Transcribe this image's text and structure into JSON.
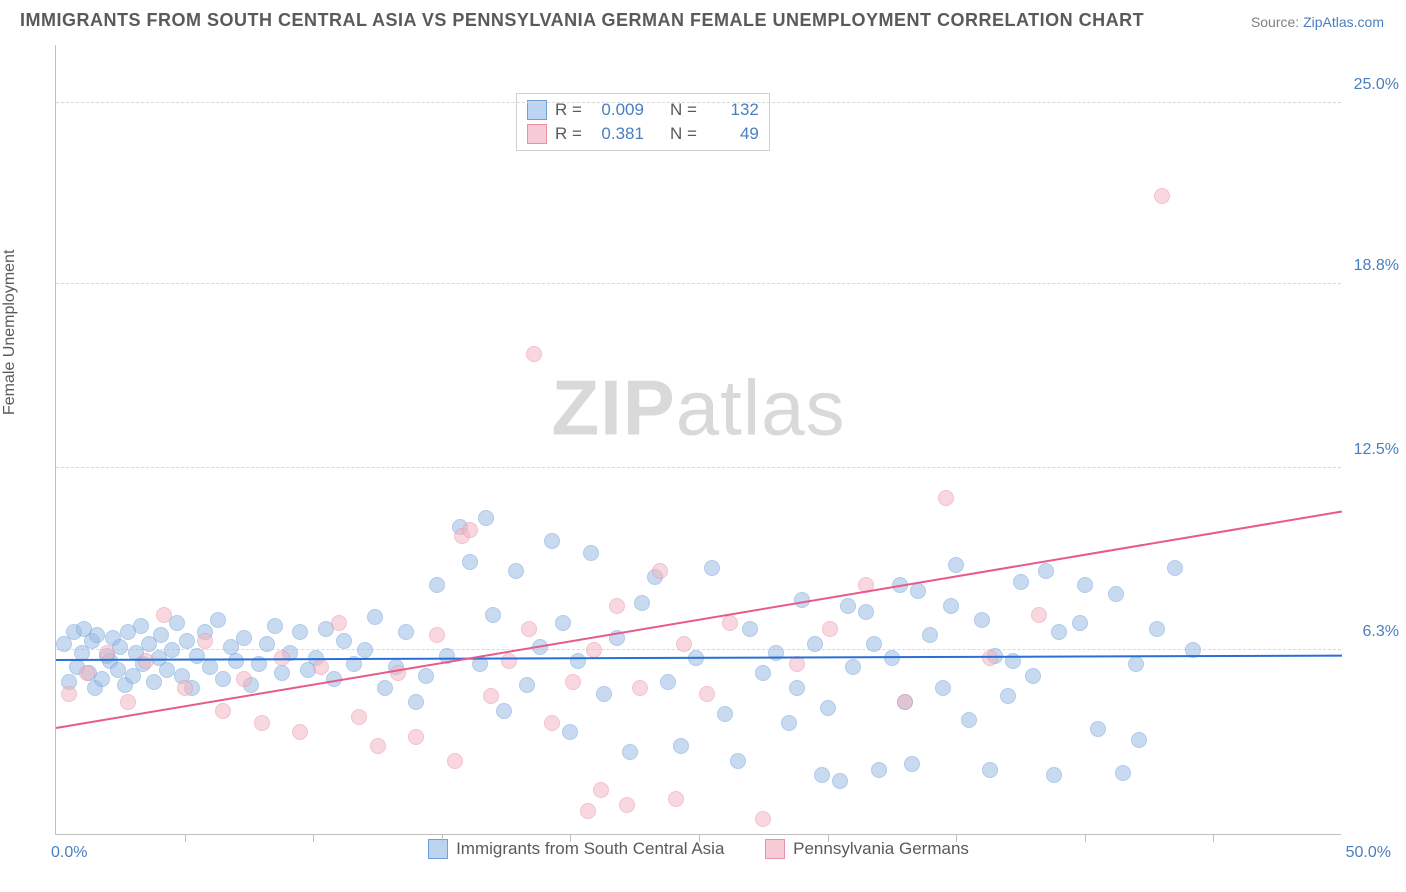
{
  "title": "IMMIGRANTS FROM SOUTH CENTRAL ASIA VS PENNSYLVANIA GERMAN FEMALE UNEMPLOYMENT CORRELATION CHART",
  "source_label": "Source:",
  "source_name": "ZipAtlas.com",
  "ylabel": "Female Unemployment",
  "watermark_bold": "ZIP",
  "watermark_light": "atlas",
  "chart": {
    "type": "scatter",
    "xlim": [
      0,
      50
    ],
    "ylim": [
      0,
      27
    ],
    "x_end_labels": [
      "0.0%",
      "50.0%"
    ],
    "yticks": [
      {
        "v": 6.3,
        "label": "6.3%"
      },
      {
        "v": 12.5,
        "label": "12.5%"
      },
      {
        "v": 18.8,
        "label": "18.8%"
      },
      {
        "v": 25.0,
        "label": "25.0%"
      }
    ],
    "xticks_minor": [
      5,
      10,
      15,
      20,
      25,
      30,
      35,
      40,
      45
    ],
    "background_color": "#ffffff",
    "grid_color": "#d8d8d8",
    "marker_radius": 8,
    "marker_opacity": 0.55,
    "series": [
      {
        "name": "Immigrants from South Central Asia",
        "fill": "#9bbce4",
        "stroke": "#6fa0d8",
        "trend_color": "#2a6fd6",
        "R": "0.009",
        "N": "132",
        "trend": {
          "x1": 0,
          "y1": 5.9,
          "x2": 50,
          "y2": 6.05
        },
        "points": [
          [
            0.3,
            6.5
          ],
          [
            0.5,
            5.2
          ],
          [
            0.7,
            6.9
          ],
          [
            0.8,
            5.7
          ],
          [
            1.0,
            6.2
          ],
          [
            1.1,
            7.0
          ],
          [
            1.3,
            5.5
          ],
          [
            1.4,
            6.6
          ],
          [
            1.5,
            5.0
          ],
          [
            1.6,
            6.8
          ],
          [
            1.8,
            5.3
          ],
          [
            2.0,
            6.1
          ],
          [
            2.1,
            5.9
          ],
          [
            2.2,
            6.7
          ],
          [
            2.4,
            5.6
          ],
          [
            2.5,
            6.4
          ],
          [
            2.7,
            5.1
          ],
          [
            2.8,
            6.9
          ],
          [
            3.0,
            5.4
          ],
          [
            3.1,
            6.2
          ],
          [
            3.3,
            7.1
          ],
          [
            3.4,
            5.8
          ],
          [
            3.6,
            6.5
          ],
          [
            3.8,
            5.2
          ],
          [
            4.0,
            6.0
          ],
          [
            4.1,
            6.8
          ],
          [
            4.3,
            5.6
          ],
          [
            4.5,
            6.3
          ],
          [
            4.7,
            7.2
          ],
          [
            4.9,
            5.4
          ],
          [
            5.1,
            6.6
          ],
          [
            5.3,
            5.0
          ],
          [
            5.5,
            6.1
          ],
          [
            5.8,
            6.9
          ],
          [
            6.0,
            5.7
          ],
          [
            6.3,
            7.3
          ],
          [
            6.5,
            5.3
          ],
          [
            6.8,
            6.4
          ],
          [
            7.0,
            5.9
          ],
          [
            7.3,
            6.7
          ],
          [
            7.6,
            5.1
          ],
          [
            7.9,
            5.8
          ],
          [
            8.2,
            6.5
          ],
          [
            8.5,
            7.1
          ],
          [
            8.8,
            5.5
          ],
          [
            9.1,
            6.2
          ],
          [
            9.5,
            6.9
          ],
          [
            9.8,
            5.6
          ],
          [
            10.1,
            6.0
          ],
          [
            10.5,
            7.0
          ],
          [
            10.8,
            5.3
          ],
          [
            11.2,
            6.6
          ],
          [
            11.6,
            5.8
          ],
          [
            12.0,
            6.3
          ],
          [
            12.4,
            7.4
          ],
          [
            12.8,
            5.0
          ],
          [
            13.2,
            5.7
          ],
          [
            13.6,
            6.9
          ],
          [
            14.0,
            4.5
          ],
          [
            14.4,
            5.4
          ],
          [
            14.8,
            8.5
          ],
          [
            15.2,
            6.1
          ],
          [
            15.7,
            10.5
          ],
          [
            16.1,
            9.3
          ],
          [
            16.5,
            5.8
          ],
          [
            16.7,
            10.8
          ],
          [
            17.0,
            7.5
          ],
          [
            17.4,
            4.2
          ],
          [
            17.9,
            9.0
          ],
          [
            18.3,
            5.1
          ],
          [
            18.8,
            6.4
          ],
          [
            19.3,
            10.0
          ],
          [
            19.7,
            7.2
          ],
          [
            20.0,
            3.5
          ],
          [
            20.3,
            5.9
          ],
          [
            20.8,
            9.6
          ],
          [
            21.3,
            4.8
          ],
          [
            21.8,
            6.7
          ],
          [
            22.3,
            2.8
          ],
          [
            22.8,
            7.9
          ],
          [
            23.3,
            8.8
          ],
          [
            23.8,
            5.2
          ],
          [
            24.3,
            3.0
          ],
          [
            24.9,
            6.0
          ],
          [
            25.5,
            9.1
          ],
          [
            26.0,
            4.1
          ],
          [
            26.5,
            2.5
          ],
          [
            27.0,
            7.0
          ],
          [
            27.5,
            5.5
          ],
          [
            28.0,
            6.2
          ],
          [
            28.5,
            3.8
          ],
          [
            29.0,
            8.0
          ],
          [
            29.5,
            6.5
          ],
          [
            30.0,
            4.3
          ],
          [
            30.5,
            1.8
          ],
          [
            31.0,
            5.7
          ],
          [
            31.5,
            7.6
          ],
          [
            32.0,
            2.2
          ],
          [
            32.5,
            6.0
          ],
          [
            33.0,
            4.5
          ],
          [
            33.5,
            8.3
          ],
          [
            34.0,
            6.8
          ],
          [
            34.5,
            5.0
          ],
          [
            35.0,
            9.2
          ],
          [
            35.5,
            3.9
          ],
          [
            36.0,
            7.3
          ],
          [
            36.5,
            6.1
          ],
          [
            37.0,
            4.7
          ],
          [
            37.5,
            8.6
          ],
          [
            38.0,
            5.4
          ],
          [
            38.5,
            9.0
          ],
          [
            39.0,
            6.9
          ],
          [
            39.8,
            7.2
          ],
          [
            40.5,
            3.6
          ],
          [
            41.2,
            8.2
          ],
          [
            42.0,
            5.8
          ],
          [
            42.1,
            3.2
          ],
          [
            42.8,
            7.0
          ],
          [
            43.5,
            9.1
          ],
          [
            44.2,
            6.3
          ],
          [
            41.5,
            2.1
          ],
          [
            40.0,
            8.5
          ],
          [
            38.8,
            2.0
          ],
          [
            37.2,
            5.9
          ],
          [
            36.3,
            2.2
          ],
          [
            34.8,
            7.8
          ],
          [
            33.3,
            2.4
          ],
          [
            32.8,
            8.5
          ],
          [
            31.8,
            6.5
          ],
          [
            30.8,
            7.8
          ],
          [
            29.8,
            2.0
          ],
          [
            28.8,
            5.0
          ]
        ]
      },
      {
        "name": "Pennsylvania Germans",
        "fill": "#f3b7c4",
        "stroke": "#e991a7",
        "trend_color": "#e75a8a",
        "R": "0.381",
        "N": "49",
        "trend": {
          "x1": 0,
          "y1": 3.6,
          "x2": 50,
          "y2": 11.0
        },
        "points": [
          [
            0.5,
            4.8
          ],
          [
            1.2,
            5.5
          ],
          [
            2.0,
            6.2
          ],
          [
            2.8,
            4.5
          ],
          [
            3.5,
            5.9
          ],
          [
            4.2,
            7.5
          ],
          [
            5.0,
            5.0
          ],
          [
            5.8,
            6.6
          ],
          [
            6.5,
            4.2
          ],
          [
            7.3,
            5.3
          ],
          [
            8.0,
            3.8
          ],
          [
            8.8,
            6.0
          ],
          [
            9.5,
            3.5
          ],
          [
            10.3,
            5.7
          ],
          [
            11.0,
            7.2
          ],
          [
            11.8,
            4.0
          ],
          [
            12.5,
            3.0
          ],
          [
            13.3,
            5.5
          ],
          [
            14.0,
            3.3
          ],
          [
            14.8,
            6.8
          ],
          [
            15.5,
            2.5
          ],
          [
            15.8,
            10.2
          ],
          [
            16.1,
            10.4
          ],
          [
            16.9,
            4.7
          ],
          [
            17.6,
            5.9
          ],
          [
            18.4,
            7.0
          ],
          [
            18.6,
            16.4
          ],
          [
            19.3,
            3.8
          ],
          [
            20.1,
            5.2
          ],
          [
            20.7,
            0.8
          ],
          [
            20.9,
            6.3
          ],
          [
            21.2,
            1.5
          ],
          [
            21.8,
            7.8
          ],
          [
            22.2,
            1.0
          ],
          [
            22.7,
            5.0
          ],
          [
            23.5,
            9.0
          ],
          [
            24.1,
            1.2
          ],
          [
            24.4,
            6.5
          ],
          [
            25.3,
            4.8
          ],
          [
            26.2,
            7.2
          ],
          [
            27.5,
            0.5
          ],
          [
            28.8,
            5.8
          ],
          [
            30.1,
            7.0
          ],
          [
            31.5,
            8.5
          ],
          [
            33.0,
            4.5
          ],
          [
            34.6,
            11.5
          ],
          [
            36.3,
            6.0
          ],
          [
            38.2,
            7.5
          ],
          [
            43.0,
            21.8
          ]
        ]
      }
    ]
  },
  "stats_legend": {
    "rows": [
      {
        "series": 0,
        "R_label": "R =",
        "N_label": "N ="
      },
      {
        "series": 1,
        "R_label": "R =",
        "N_label": "N ="
      }
    ]
  }
}
